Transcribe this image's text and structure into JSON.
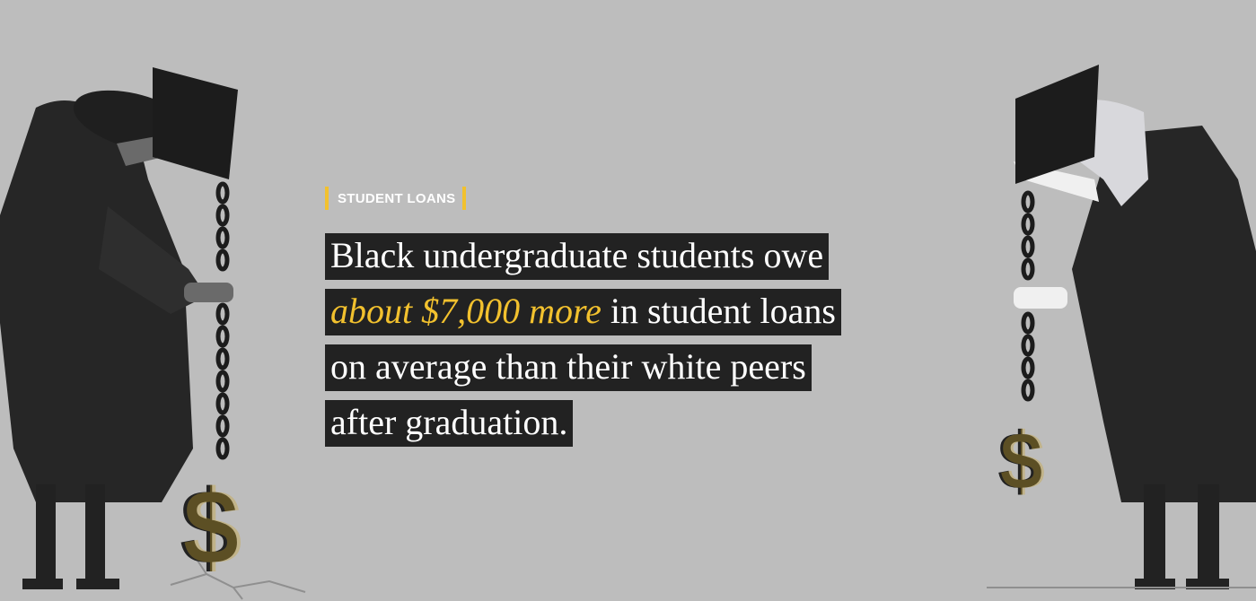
{
  "kicker": "STUDENT LOANS",
  "headline": {
    "line1": "Black undergraduate students owe",
    "line2_accent": "about $7,000 more",
    "line2_rest": " in student loans",
    "line3": "on average than their white peers",
    "line4": "after graduation."
  },
  "colors": {
    "background": "#bdbdbd",
    "accent": "#f2c12e",
    "text_box": "#222222",
    "text": "#ffffff"
  },
  "illustration": {
    "left": "graduate-chained-to-dollar-icon",
    "right": "graduate-chained-to-dollar-icon"
  }
}
